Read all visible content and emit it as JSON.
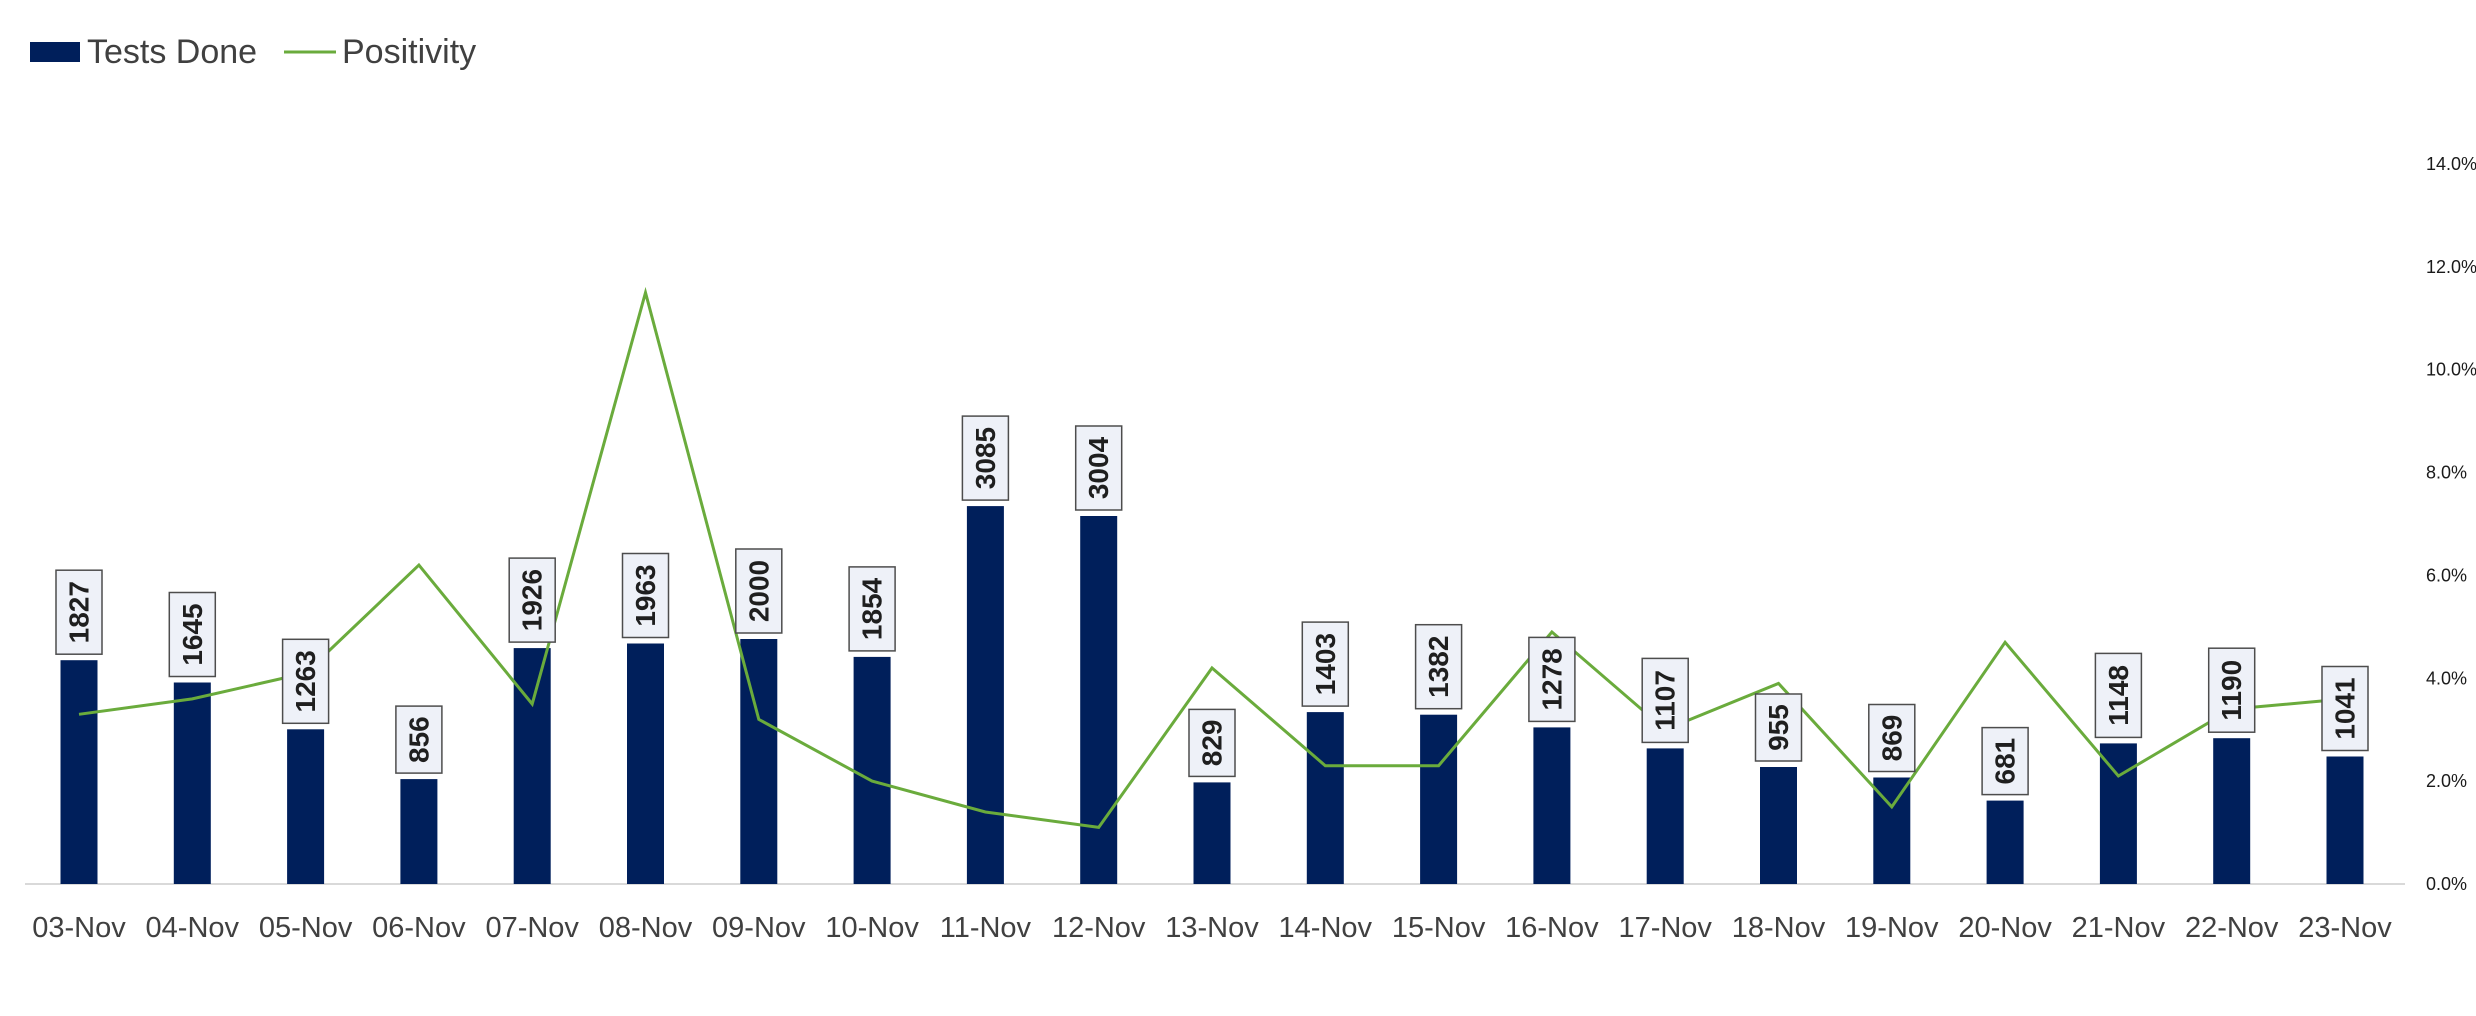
{
  "chart_data": {
    "type": "bar",
    "title": "",
    "xlabel": "",
    "ylabel": "",
    "categories": [
      "03-Nov",
      "04-Nov",
      "05-Nov",
      "06-Nov",
      "07-Nov",
      "08-Nov",
      "09-Nov",
      "10-Nov",
      "11-Nov",
      "12-Nov",
      "13-Nov",
      "14-Nov",
      "15-Nov",
      "16-Nov",
      "17-Nov",
      "18-Nov",
      "19-Nov",
      "20-Nov",
      "21-Nov",
      "22-Nov",
      "23-Nov"
    ],
    "series": [
      {
        "name": "Tests Done",
        "type": "bar",
        "axis": "primary",
        "color": "#001f5b",
        "values": [
          1827,
          1645,
          1263,
          856,
          1926,
          1963,
          2000,
          1854,
          3085,
          3004,
          829,
          1403,
          1382,
          1278,
          1107,
          955,
          869,
          681,
          1148,
          1190,
          1041
        ]
      },
      {
        "name": "Positivity",
        "type": "line",
        "axis": "secondary",
        "color": "#6aab3c",
        "values": [
          3.3,
          3.6,
          4.1,
          6.2,
          3.5,
          11.5,
          3.2,
          2.0,
          1.4,
          1.1,
          4.2,
          2.3,
          2.3,
          4.9,
          3.0,
          3.9,
          1.5,
          4.7,
          2.1,
          3.4,
          3.6
        ]
      }
    ],
    "primary_ylim": [
      0,
      3500
    ],
    "y2lim": [
      0,
      14
    ],
    "y2_ticks": [
      "0.0%",
      "2.0%",
      "4.0%",
      "6.0%",
      "8.0%",
      "10.0%",
      "12.0%",
      "14.0%"
    ],
    "data_labels": true,
    "legend": {
      "position": "top-left",
      "items": [
        "Tests Done",
        "Positivity"
      ]
    },
    "grid": false
  }
}
